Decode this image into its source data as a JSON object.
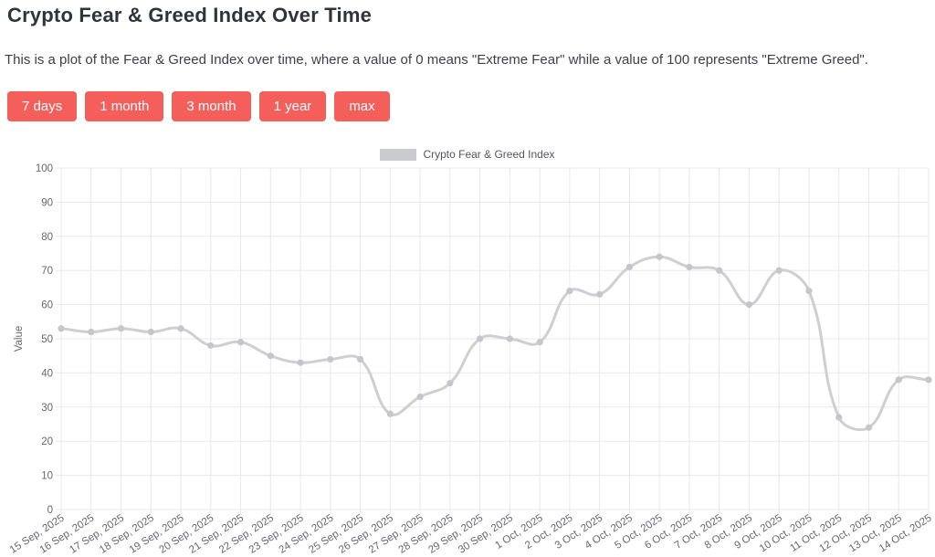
{
  "page": {
    "title": "Crypto Fear & Greed Index Over Time",
    "description": "This is a plot of the Fear & Greed Index over time, where a value of 0 means \"Extreme Fear\" while a value of 100 represents \"Extreme Greed\"."
  },
  "toolbar": {
    "button_color": "#f45f5c",
    "buttons": [
      {
        "label": "7 days"
      },
      {
        "label": "1 month"
      },
      {
        "label": "3 month"
      },
      {
        "label": "1 year"
      },
      {
        "label": "max"
      }
    ]
  },
  "legend": {
    "label": "Crypto Fear & Greed Index",
    "swatch_color": "#c9cbcf"
  },
  "chart_data": {
    "type": "line",
    "title": "",
    "xlabel": "",
    "ylabel": "Value",
    "ylim": [
      0,
      100
    ],
    "ytick_step": 10,
    "grid": true,
    "legend_position": "top-center",
    "line_color": "#cfcfd2",
    "point_color": "#c5c6c9",
    "grid_color": "#e8e8ea",
    "curve_tension": 0.4,
    "x_label_rotation_deg": -33,
    "categories": [
      "15 Sep, 2025",
      "16 Sep, 2025",
      "17 Sep, 2025",
      "18 Sep, 2025",
      "19 Sep, 2025",
      "20 Sep, 2025",
      "21 Sep, 2025",
      "22 Sep, 2025",
      "23 Sep, 2025",
      "24 Sep, 2025",
      "25 Sep, 2025",
      "26 Sep, 2025",
      "27 Sep, 2025",
      "28 Sep, 2025",
      "29 Sep, 2025",
      "30 Sep, 2025",
      "1 Oct, 2025",
      "2 Oct, 2025",
      "3 Oct, 2025",
      "4 Oct, 2025",
      "5 Oct, 2025",
      "6 Oct, 2025",
      "7 Oct, 2025",
      "8 Oct, 2025",
      "9 Oct, 2025",
      "10 Oct, 2025",
      "11 Oct, 2025",
      "12 Oct, 2025",
      "13 Oct, 2025",
      "14 Oct, 2025"
    ],
    "series": [
      {
        "name": "Crypto Fear & Greed Index",
        "values": [
          53,
          52,
          53,
          52,
          53,
          48,
          49,
          45,
          43,
          44,
          44,
          28,
          33,
          37,
          50,
          50,
          49,
          64,
          63,
          71,
          74,
          71,
          70,
          60,
          70,
          64,
          27,
          24,
          38,
          38
        ]
      }
    ]
  }
}
